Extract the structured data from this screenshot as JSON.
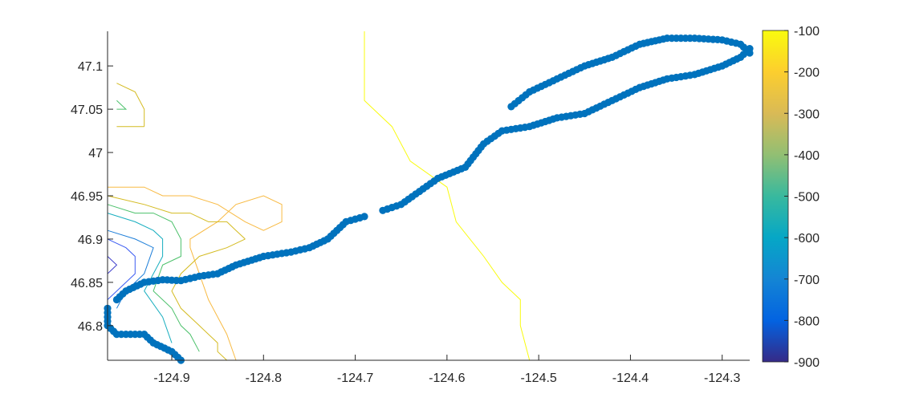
{
  "chart_data": {
    "type": "scatter",
    "title": "",
    "xlabel": "",
    "ylabel": "",
    "xlim": [
      -124.97,
      -124.27
    ],
    "ylim": [
      46.76,
      47.14
    ],
    "grid": false,
    "x_ticks": [
      -124.9,
      -124.8,
      -124.7,
      -124.6,
      -124.5,
      -124.4,
      -124.3
    ],
    "x_tick_labels": [
      "-124.9",
      "-124.8",
      "-124.7",
      "-124.6",
      "-124.5",
      "-124.4",
      "-124.3"
    ],
    "y_ticks": [
      46.8,
      46.85,
      46.9,
      46.95,
      47.0,
      47.05,
      47.1
    ],
    "y_tick_labels": [
      "46.8",
      "46.85",
      "46.9",
      "46.95",
      "47",
      "47.05",
      "47.1"
    ],
    "colorbar": {
      "range": [
        -900,
        -100
      ],
      "ticks": [
        -100,
        -200,
        -300,
        -400,
        -500,
        -600,
        -700,
        -800,
        -900
      ],
      "tick_labels": [
        "-100",
        "-200",
        "-300",
        "-400",
        "-500",
        "-600",
        "-700",
        "-800",
        "-900"
      ],
      "colormap": "parula"
    },
    "contours": [
      {
        "level": -100,
        "color": "#f9fb0e",
        "x": [
          -124.69,
          -124.69,
          -124.66,
          -124.64,
          -124.6,
          -124.59,
          -124.56,
          -124.54,
          -124.52,
          -124.52,
          -124.51
        ],
        "y": [
          47.14,
          47.06,
          47.03,
          46.99,
          46.96,
          46.92,
          46.88,
          46.85,
          46.83,
          46.8,
          46.76
        ]
      },
      {
        "level": -200,
        "color": "#f8ba43",
        "x": [
          -124.83,
          -124.84,
          -124.86,
          -124.87,
          -124.88,
          -124.88,
          -124.85
        ],
        "y": [
          46.76,
          46.79,
          46.83,
          46.86,
          46.89,
          46.9,
          46.92
        ]
      },
      {
        "level": -200,
        "color": "#f8ba43",
        "x": [
          -124.85,
          -124.83,
          -124.8,
          -124.78,
          -124.78,
          -124.8,
          -124.82,
          -124.85,
          -124.88,
          -124.91,
          -124.93,
          -124.97
        ],
        "y": [
          46.92,
          46.94,
          46.95,
          46.94,
          46.92,
          46.91,
          46.92,
          46.94,
          46.95,
          46.95,
          46.96,
          46.96
        ]
      },
      {
        "level": -300,
        "color": "#d4bb21",
        "x": [
          -124.96,
          -124.94,
          -124.93,
          -124.93
        ],
        "y": [
          47.08,
          47.07,
          47.05,
          47.03
        ]
      },
      {
        "level": -300,
        "color": "#d4bb21",
        "x": [
          -124.93,
          -124.95,
          -124.96
        ],
        "y": [
          47.03,
          47.03,
          47.03
        ]
      },
      {
        "level": -300,
        "color": "#d4bb21",
        "x": [
          -124.97,
          -124.93,
          -124.9,
          -124.88,
          -124.86,
          -124.84,
          -124.83,
          -124.82
        ],
        "y": [
          46.95,
          46.94,
          46.93,
          46.93,
          46.92,
          46.92,
          46.91,
          46.9
        ]
      },
      {
        "level": -300,
        "color": "#d4bb21",
        "x": [
          -124.82,
          -124.84,
          -124.87,
          -124.89,
          -124.9,
          -124.89,
          -124.87,
          -124.86,
          -124.85,
          -124.85,
          -124.84
        ],
        "y": [
          46.9,
          46.89,
          46.88,
          46.86,
          46.84,
          46.82,
          46.8,
          46.79,
          46.78,
          46.77,
          46.76
        ]
      },
      {
        "level": -400,
        "color": "#4cc16b",
        "x": [
          -124.96,
          -124.95,
          -124.96
        ],
        "y": [
          47.06,
          47.05,
          47.05
        ]
      },
      {
        "level": -400,
        "color": "#4cc16b",
        "x": [
          -124.97,
          -124.94,
          -124.92,
          -124.9,
          -124.89,
          -124.89,
          -124.91,
          -124.92,
          -124.9,
          -124.89,
          -124.88,
          -124.87
        ],
        "y": [
          46.94,
          46.93,
          46.93,
          46.92,
          46.9,
          46.88,
          46.87,
          46.84,
          46.82,
          46.8,
          46.79,
          46.77
        ]
      },
      {
        "level": -500,
        "color": "#18aebf",
        "x": [
          -124.97,
          -124.94,
          -124.92,
          -124.91,
          -124.91,
          -124.92,
          -124.93,
          -124.91,
          -124.9
        ],
        "y": [
          46.93,
          46.92,
          46.91,
          46.9,
          46.88,
          46.86,
          46.84,
          46.81,
          46.78
        ]
      },
      {
        "level": -600,
        "color": "#1e7fd9",
        "x": [
          -124.97,
          -124.94,
          -124.92,
          -124.93,
          -124.95,
          -124.96
        ],
        "y": [
          46.91,
          46.9,
          46.89,
          46.86,
          46.84,
          46.82
        ]
      },
      {
        "level": -700,
        "color": "#3d5df2",
        "x": [
          -124.97,
          -124.95,
          -124.94,
          -124.94,
          -124.96,
          -124.97
        ],
        "y": [
          46.9,
          46.89,
          46.88,
          46.86,
          46.84,
          46.83
        ]
      },
      {
        "level": -800,
        "color": "#4040cc",
        "x": [
          -124.97,
          -124.96,
          -124.97
        ],
        "y": [
          46.88,
          46.87,
          46.86
        ]
      }
    ],
    "series": [
      {
        "color": "#0072bd",
        "segments": [
          {
            "x": [
              -124.89,
              -124.9,
              -124.92,
              -124.93,
              -124.95,
              -124.96,
              -124.97,
              -124.97,
              -124.97
            ],
            "y": [
              46.76,
              46.77,
              46.78,
              46.79,
              46.79,
              46.79,
              46.8,
              46.81,
              46.82
            ]
          },
          {
            "x": [
              -124.96,
              -124.95,
              -124.93,
              -124.91,
              -124.89,
              -124.87,
              -124.85,
              -124.83,
              -124.8,
              -124.77,
              -124.75,
              -124.73,
              -124.71,
              -124.69
            ],
            "y": [
              46.83,
              46.84,
              46.85,
              46.853,
              46.852,
              46.857,
              46.86,
              46.87,
              46.88,
              46.885,
              46.89,
              46.9,
              46.92,
              46.926
            ]
          },
          {
            "x": [
              -124.67,
              -124.65,
              -124.63,
              -124.61,
              -124.58,
              -124.56,
              -124.54,
              -124.51,
              -124.48,
              -124.45,
              -124.42,
              -124.39,
              -124.36,
              -124.33,
              -124.3,
              -124.28,
              -124.27
            ],
            "y": [
              46.933,
              46.94,
              46.955,
              46.97,
              46.983,
              47.01,
              47.025,
              47.03,
              47.04,
              47.045,
              47.06,
              47.075,
              47.085,
              47.09,
              47.1,
              47.11,
              47.12
            ]
          },
          {
            "x": [
              -124.53,
              -124.51,
              -124.48,
              -124.45,
              -124.42,
              -124.39,
              -124.36,
              -124.33,
              -124.3,
              -124.28,
              -124.27
            ],
            "y": [
              47.053,
              47.07,
              47.085,
              47.1,
              47.11,
              47.125,
              47.132,
              47.132,
              47.13,
              47.125,
              47.115
            ]
          }
        ]
      }
    ]
  }
}
